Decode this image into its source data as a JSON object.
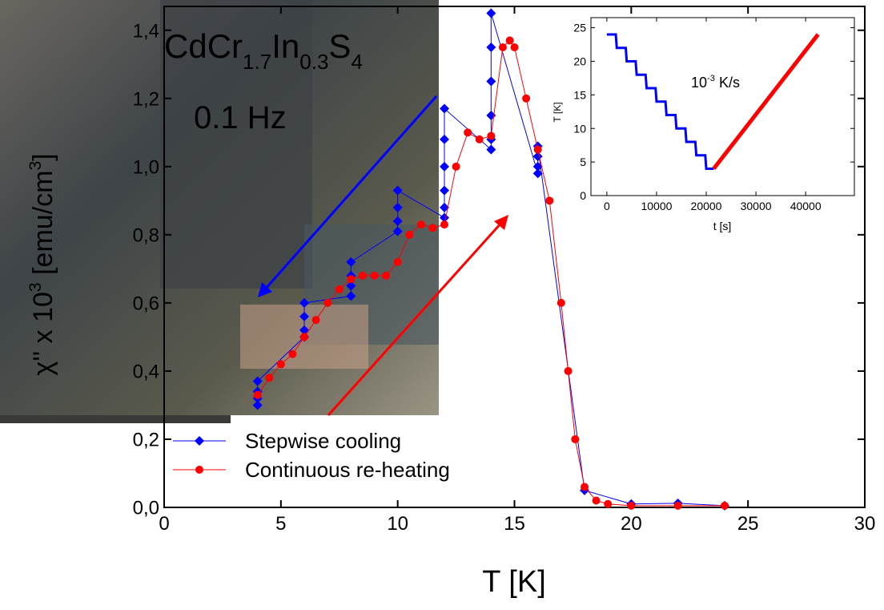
{
  "chart_data": [
    {
      "type": "line",
      "title_parts": [
        "CdCr",
        "1.7",
        "In",
        "0.3",
        "S",
        "4"
      ],
      "subtitle": "0.1 Hz",
      "xlabel": "T [K]",
      "ylabel_parts": [
        "χ'' x 10",
        "3",
        " [emu/cm",
        "3",
        "]"
      ],
      "xlim": [
        0,
        30
      ],
      "xticks": [
        0,
        5,
        10,
        15,
        20,
        25,
        30
      ],
      "ylim": [
        0,
        1.47
      ],
      "yticks": [
        {
          "value": 0,
          "label": "0,0"
        },
        {
          "value": 0.2,
          "label": "0,2"
        },
        {
          "value": 0.4,
          "label": "0,4"
        },
        {
          "value": 0.6,
          "label": "0,6"
        },
        {
          "value": 0.8,
          "label": "0,8"
        },
        {
          "value": 1.0,
          "label": "1,0"
        },
        {
          "value": 1.2,
          "label": "1,2"
        },
        {
          "value": 1.4,
          "label": "1,4"
        }
      ],
      "legend": "lower left",
      "series": [
        {
          "name": "Stepwise cooling",
          "color": "#0000ff",
          "marker": "diamond",
          "x": [
            24,
            22,
            20,
            18,
            16,
            16,
            16,
            16,
            14,
            14,
            14,
            14,
            14,
            14,
            12,
            12,
            12,
            12,
            12,
            12,
            10,
            10,
            10,
            10,
            8,
            8,
            8,
            8,
            6,
            6,
            6,
            6,
            4,
            4,
            4,
            4
          ],
          "values": [
            0.005,
            0.012,
            0.01,
            0.05,
            1.06,
            1.03,
            1.0,
            0.98,
            1.45,
            1.35,
            1.25,
            1.15,
            1.08,
            1.05,
            1.17,
            1.08,
            1.0,
            0.93,
            0.88,
            0.85,
            0.93,
            0.88,
            0.84,
            0.81,
            0.72,
            0.68,
            0.65,
            0.62,
            0.6,
            0.56,
            0.52,
            0.5,
            0.37,
            0.34,
            0.32,
            0.3
          ]
        },
        {
          "name": "Continuous re-heating",
          "color": "#ff0000",
          "marker": "circle",
          "x": [
            4,
            4.5,
            5,
            5.5,
            6,
            6.5,
            7,
            7.5,
            8,
            8.5,
            9,
            9.5,
            10,
            10.5,
            11,
            11.5,
            12,
            12.5,
            13,
            13.5,
            14,
            14.5,
            14.8,
            15,
            15.5,
            16,
            16.5,
            17,
            17.3,
            17.6,
            18,
            18.5,
            19,
            20,
            22,
            24
          ],
          "values": [
            0.33,
            0.38,
            0.42,
            0.45,
            0.5,
            0.55,
            0.6,
            0.64,
            0.67,
            0.68,
            0.68,
            0.68,
            0.72,
            0.8,
            0.83,
            0.82,
            0.83,
            1.0,
            1.1,
            1.08,
            1.09,
            1.35,
            1.37,
            1.35,
            1.2,
            1.05,
            0.9,
            0.6,
            0.4,
            0.2,
            0.06,
            0.02,
            0.01,
            0.005,
            0.005,
            0.005
          ]
        }
      ]
    },
    {
      "type": "line",
      "annotation_parts": [
        "10",
        "-3",
        " K/s"
      ],
      "xlabel": "t [s]",
      "ylabel": "T [K]",
      "xlim": [
        -3200,
        49800
      ],
      "xticks": [
        0,
        10000,
        20000,
        30000,
        40000
      ],
      "ylim": [
        0,
        26.5
      ],
      "yticks": [
        0,
        5,
        10,
        15,
        20,
        25
      ],
      "series": [
        {
          "color": "#0000ff",
          "x": [
            0,
            1800,
            2000,
            3800,
            4000,
            5800,
            6000,
            7800,
            8000,
            9800,
            10000,
            11800,
            12000,
            13800,
            14000,
            15800,
            16000,
            17800,
            18000,
            19800,
            20000,
            21500
          ],
          "values": [
            24,
            24,
            22,
            22,
            20,
            20,
            18,
            18,
            16,
            16,
            14,
            14,
            12,
            12,
            10,
            10,
            8,
            8,
            6,
            6,
            4,
            4
          ]
        },
        {
          "color": "#ff0000",
          "x": [
            21500,
            42500
          ],
          "values": [
            4,
            24
          ]
        }
      ]
    }
  ]
}
